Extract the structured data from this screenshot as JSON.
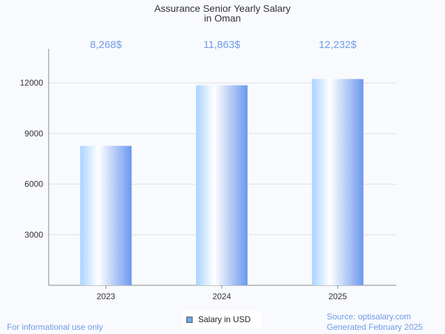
{
  "chart_data": {
    "type": "bar",
    "title_line1": "Assurance Senior Yearly Salary",
    "title_line2": "in Oman",
    "categories": [
      "2023",
      "2024",
      "2025"
    ],
    "values": [
      8268,
      11863,
      12232
    ],
    "data_labels": [
      "8,268$",
      "11,863$",
      "12,232$"
    ],
    "yticks": [
      3000,
      6000,
      9000,
      12000
    ],
    "ylim": [
      0,
      14000
    ],
    "grid": true,
    "legend": {
      "label": "Salary in USD",
      "position": "bottom-center"
    },
    "colors": {
      "bar_light": "#a9d3ff",
      "bar_dark": "#6b98ee",
      "label": "#6f9ae8"
    }
  },
  "footer": {
    "left": "For informational use only",
    "source": "Source: optisalary.com",
    "generated": "Generated February 2025"
  }
}
